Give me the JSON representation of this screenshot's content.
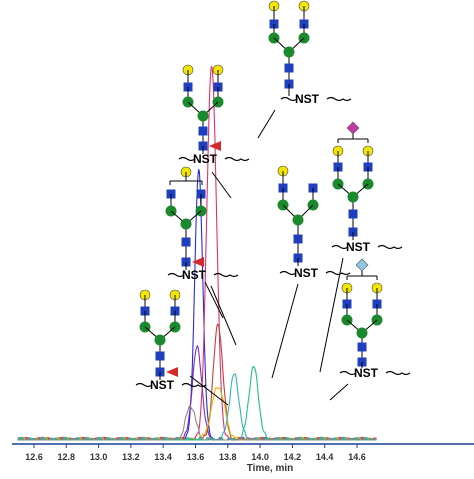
{
  "chart_data": {
    "type": "line",
    "title": "",
    "xlabel": "Time, min",
    "ylabel": "",
    "xlim": [
      12.5,
      14.7
    ],
    "ylim": [
      0,
      1
    ],
    "x_ticks": [
      "12.6",
      "12.8",
      "13.0",
      "13.2",
      "13.4",
      "13.6",
      "13.8",
      "14.0",
      "14.2",
      "14.4",
      "14.6"
    ],
    "grid": false,
    "series": [
      {
        "color": "#2b2bd6",
        "peaks": [
          {
            "x": 13.62,
            "height": 0.7,
            "width": 0.025
          }
        ]
      },
      {
        "color": "#7b2fbf",
        "peaks": [
          {
            "x": 13.61,
            "height": 0.24,
            "width": 0.03
          }
        ]
      },
      {
        "color": "#e0336b",
        "peaks": [
          {
            "x": 13.7,
            "height": 0.98,
            "width": 0.03
          }
        ]
      },
      {
        "color": "#c04040",
        "peaks": [
          {
            "x": 13.74,
            "height": 0.3,
            "width": 0.03
          }
        ]
      },
      {
        "color": "#e7b800",
        "peaks": [
          {
            "x": 13.74,
            "height": 0.14,
            "width": 0.04
          }
        ]
      },
      {
        "color": "#33b5b5",
        "peaks": [
          {
            "x": 13.84,
            "height": 0.17,
            "width": 0.03
          }
        ]
      },
      {
        "color": "#20c08a",
        "peaks": [
          {
            "x": 13.96,
            "height": 0.19,
            "width": 0.03
          }
        ]
      },
      {
        "color": "#8a8a8a",
        "peaks": [
          {
            "x": 13.57,
            "height": 0.09,
            "width": 0.03
          }
        ]
      }
    ]
  },
  "annotations": [
    {
      "label": "NST",
      "glycan": "biantennary-full-fucose"
    },
    {
      "label": "NST",
      "glycan": "biantennary-one-gal-fucose"
    },
    {
      "label": "NST",
      "glycan": "biantennary-two-gal-fucose"
    },
    {
      "label": "NST",
      "glycan": "biantennary-full"
    },
    {
      "label": "NST",
      "glycan": "biantennary-one-gal"
    },
    {
      "label": "NST",
      "glycan": "biantennary-sialic"
    },
    {
      "label": "NST",
      "glycan": "biantennary-neugc"
    }
  ],
  "colors": {
    "glcnac": "#1f3fbf",
    "mannose": "#1b8a2e",
    "galactose": "#f2e600",
    "fucose": "#d42a2a",
    "neuac": "#c23aa8",
    "neugc": "#8fc6e8",
    "axis": "#1c3f9a"
  }
}
